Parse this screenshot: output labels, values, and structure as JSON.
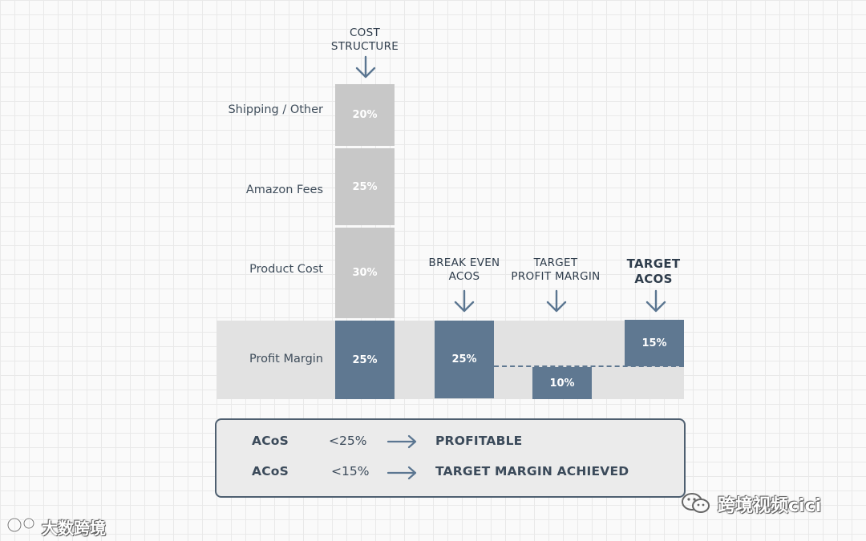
{
  "headers": {
    "cost_structure": "COST\nSTRUCTURE",
    "break_even_acos": "BREAK EVEN\nACOS",
    "target_profit_margin": "TARGET\nPROFIT MARGIN",
    "target_acos": "TARGET\nACOS"
  },
  "rows": {
    "shipping": "Shipping / Other",
    "amazon_fees": "Amazon Fees",
    "product_cost": "Product Cost",
    "profit_margin": "Profit Margin"
  },
  "values": {
    "shipping": "20%",
    "amazon_fees": "25%",
    "product_cost": "30%",
    "profit_margin": "25%",
    "break_even": "25%",
    "target_profit": "10%",
    "target_acos": "15%"
  },
  "legend": {
    "row1": {
      "metric": "ACoS",
      "threshold": "<25%",
      "result": "PROFITABLE"
    },
    "row2": {
      "metric": "ACoS",
      "threshold": "<15%",
      "result": "TARGET MARGIN ACHIEVED"
    }
  },
  "watermarks": {
    "bottom_left": "大数跨境",
    "bottom_right": "跨境视频cici"
  },
  "colors": {
    "accent_blue": "#5f7891",
    "segment_gray": "#c8c8c8",
    "band_gray": "#e2e2e2"
  }
}
